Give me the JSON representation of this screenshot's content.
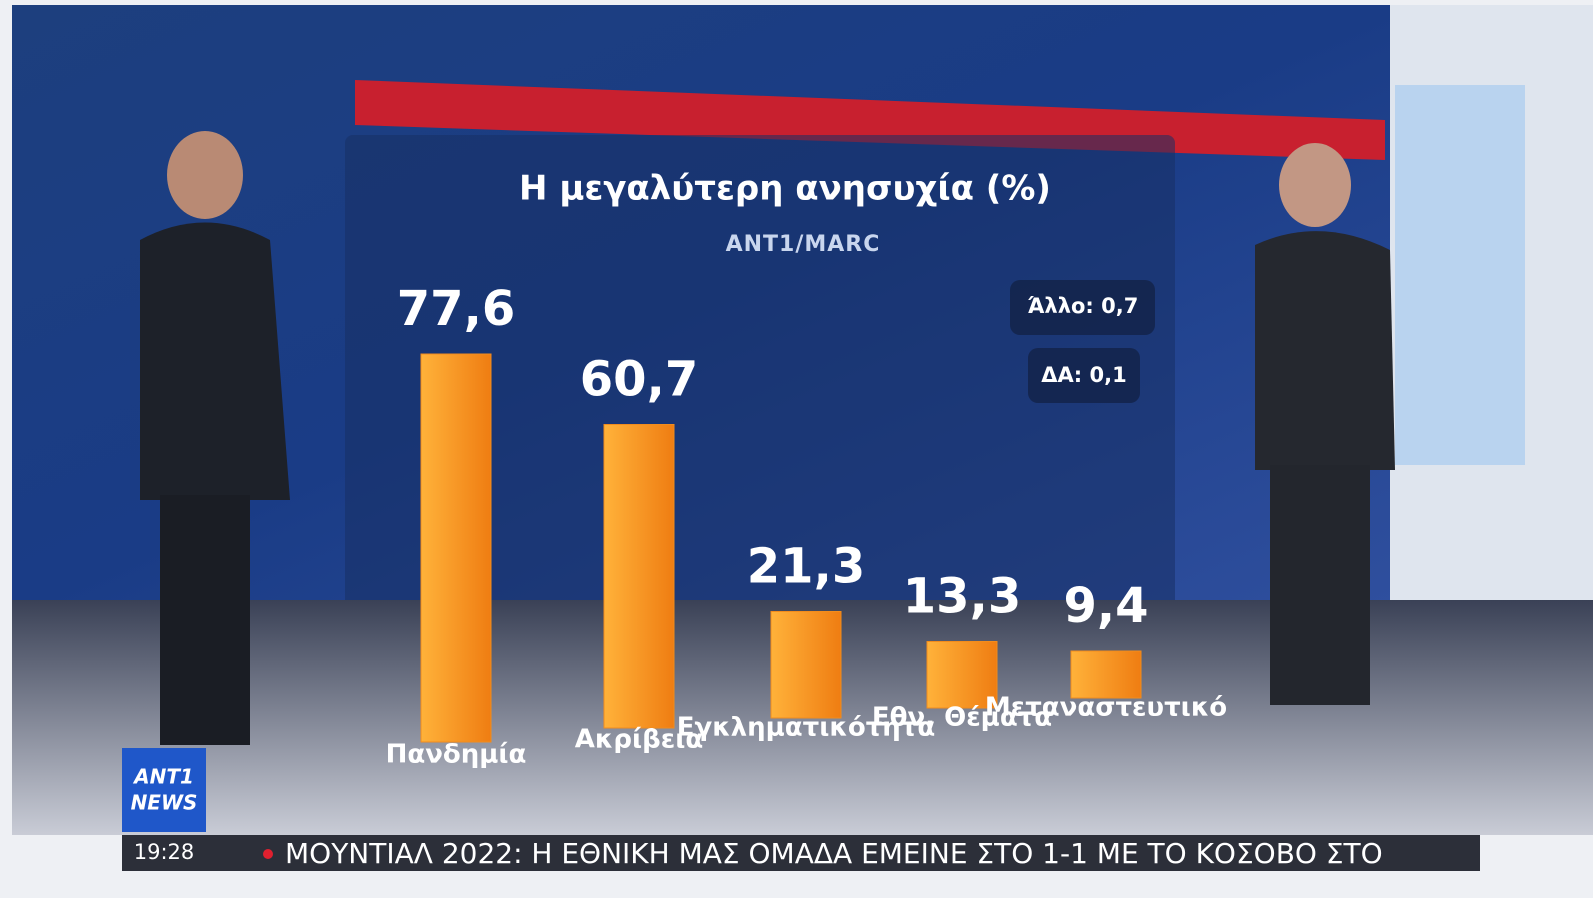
{
  "chart_data": {
    "type": "bar",
    "title": "Η μεγαλύτερη ανησυχία (%)",
    "subtitle": "ANT1/MARC",
    "categories": [
      "Πανδημία",
      "Ακρίβεια",
      "Εγκληματικότητα",
      "Εθν. Θέματα",
      "Μεταναστευτικό"
    ],
    "values": [
      77.6,
      60.7,
      21.3,
      13.3,
      9.4
    ],
    "value_labels": [
      "77,6",
      "60,7",
      "21,3",
      "13,3",
      "9,4"
    ],
    "color": "#f28c1c",
    "annotations": [
      "Άλλο: 0,7",
      "ΔΑ: 0,1"
    ]
  },
  "broadcast": {
    "logo_top": "ANT1",
    "logo_bottom": "NEWS",
    "time": "19:28",
    "ticker": "ΜΟΥΝΤΙΑΛ 2022: Η ΕΘΝΙΚΗ ΜΑΣ ΟΜΑΔΑ ΕΜΕΙΝΕ ΣΤΟ 1-1 ΜΕ ΤΟ ΚΟΣΟΒΟ ΣΤΟ"
  }
}
